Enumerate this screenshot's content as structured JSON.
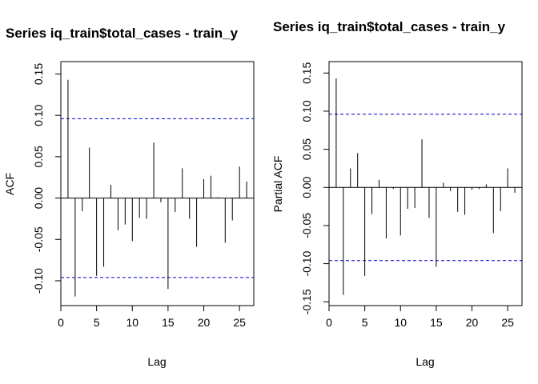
{
  "chart_data": [
    {
      "type": "bar",
      "title": "Series iq_train$total_cases - train_y",
      "xlabel": "Lag",
      "ylabel": "ACF",
      "xlim": [
        0,
        27
      ],
      "ylim": [
        -0.13,
        0.165
      ],
      "x_ticks": [
        0,
        5,
        10,
        15,
        20,
        25
      ],
      "y_ticks": [
        -0.1,
        -0.05,
        0.0,
        0.05,
        0.1,
        0.15
      ],
      "y_tick_labels": [
        "-0.10",
        "-0.05",
        "0.00",
        "0.05",
        "0.10",
        "0.15"
      ],
      "zero_line": 0,
      "confidence_bound": 0.096,
      "lags": [
        1,
        2,
        3,
        4,
        5,
        6,
        7,
        8,
        9,
        10,
        11,
        12,
        13,
        14,
        15,
        16,
        17,
        18,
        19,
        20,
        21,
        22,
        23,
        24,
        25,
        26
      ],
      "values": [
        0.143,
        -0.119,
        -0.016,
        0.061,
        -0.094,
        -0.083,
        0.016,
        -0.039,
        -0.032,
        -0.052,
        -0.024,
        -0.025,
        0.067,
        -0.005,
        -0.11,
        -0.017,
        0.036,
        -0.025,
        -0.059,
        0.023,
        0.027,
        0.001,
        -0.054,
        -0.027,
        0.038,
        0.02
      ]
    },
    {
      "type": "bar",
      "title": "Series  iq_train$total_cases - train_y",
      "xlabel": "Lag",
      "ylabel": "Partial ACF",
      "xlim": [
        0,
        27
      ],
      "ylim": [
        -0.155,
        0.165
      ],
      "x_ticks": [
        0,
        5,
        10,
        15,
        20,
        25
      ],
      "y_ticks": [
        -0.15,
        -0.1,
        -0.05,
        0.0,
        0.05,
        0.1,
        0.15
      ],
      "y_tick_labels": [
        "-0.15",
        "-0.10",
        "-0.05",
        "0.00",
        "0.05",
        "0.10",
        "0.15"
      ],
      "zero_line": 0,
      "confidence_bound": 0.096,
      "lags": [
        1,
        2,
        3,
        4,
        5,
        6,
        7,
        8,
        9,
        10,
        11,
        12,
        13,
        14,
        15,
        16,
        17,
        18,
        19,
        20,
        21,
        22,
        23,
        24,
        25,
        26
      ],
      "values": [
        0.143,
        -0.141,
        0.025,
        0.045,
        -0.116,
        -0.035,
        0.01,
        -0.067,
        -0.002,
        -0.063,
        -0.028,
        -0.027,
        0.063,
        -0.04,
        -0.104,
        0.006,
        -0.005,
        -0.032,
        -0.036,
        -0.003,
        -0.002,
        0.004,
        -0.06,
        -0.031,
        0.025,
        -0.007
      ]
    }
  ],
  "colors": {
    "bars": "#000000",
    "confidence_lines": "#0000cc",
    "axes": "#000000"
  }
}
